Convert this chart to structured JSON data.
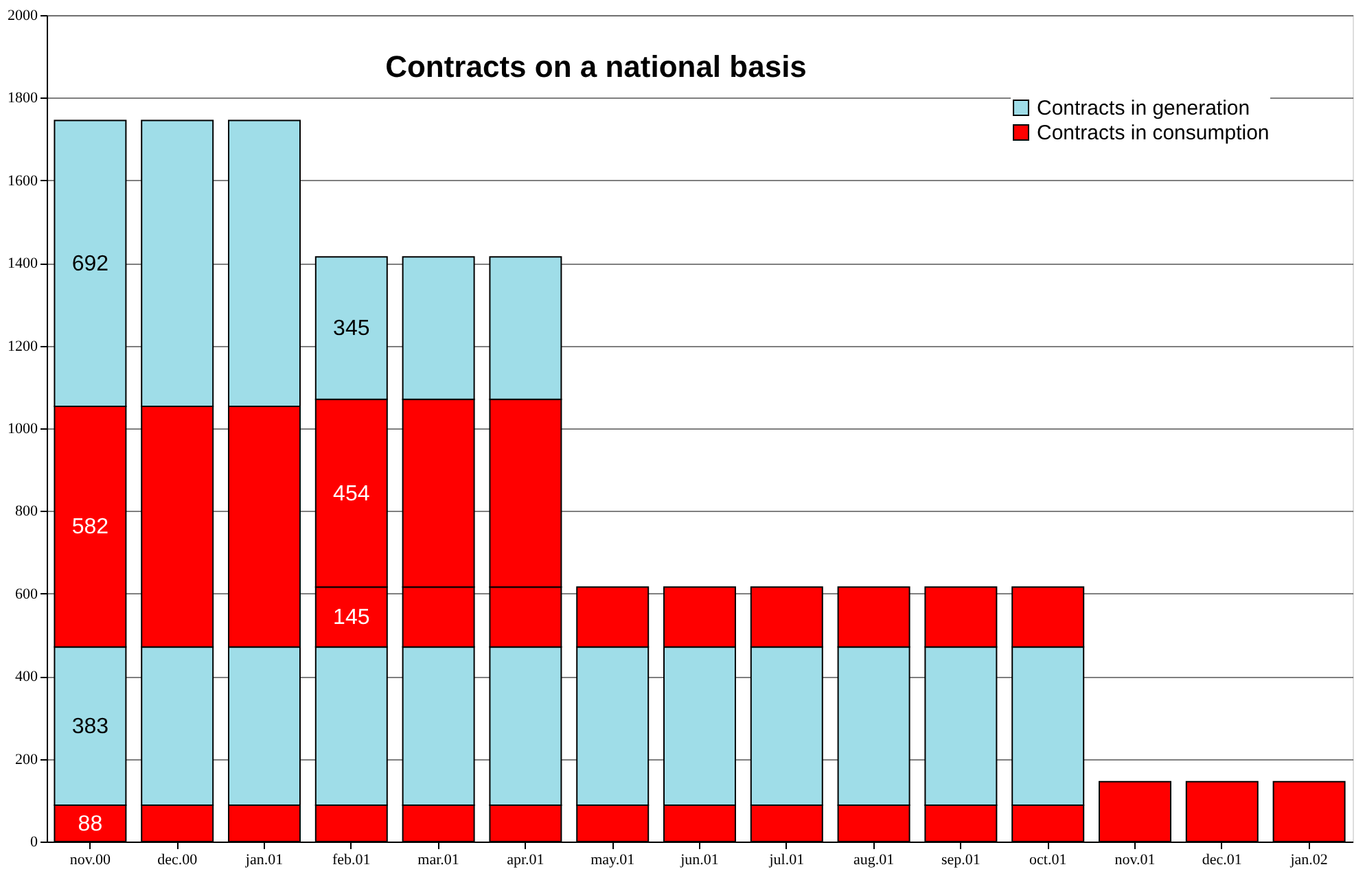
{
  "chart_data": {
    "type": "bar",
    "title": "Contracts on a national basis",
    "stacked": true,
    "categories": [
      "nov.00",
      "dec.00",
      "jan.01",
      "feb.01",
      "mar.01",
      "apr.01",
      "may.01",
      "jun.01",
      "jul.01",
      "aug.01",
      "sep.01",
      "oct.01",
      "nov.01",
      "dec.01",
      "jan.02"
    ],
    "series": [
      {
        "name": "Contracts in consumption",
        "color": "#ff0000",
        "values": [
          88,
          88,
          88,
          88,
          88,
          88,
          88,
          88,
          88,
          88,
          88,
          88,
          null,
          null,
          null
        ],
        "value_labels": [
          "88",
          null,
          null,
          null,
          null,
          null,
          null,
          null,
          null,
          null,
          null,
          null,
          null,
          null,
          null
        ]
      },
      {
        "name": "Contracts in generation",
        "color": "#9fdde8",
        "values": [
          383,
          383,
          383,
          383,
          383,
          383,
          383,
          383,
          383,
          383,
          383,
          383,
          null,
          null,
          null
        ],
        "value_labels": [
          "383",
          null,
          null,
          null,
          null,
          null,
          null,
          null,
          null,
          null,
          null,
          null,
          null,
          null,
          null
        ]
      },
      {
        "color": "#ff0000",
        "values": [
          null,
          null,
          null,
          145,
          145,
          145,
          145,
          145,
          145,
          145,
          145,
          145,
          145,
          145,
          145
        ],
        "value_labels": [
          null,
          null,
          null,
          "145",
          null,
          null,
          null,
          null,
          null,
          null,
          null,
          null,
          null,
          null,
          null
        ]
      },
      {
        "color": "#ff0000",
        "values": [
          582,
          582,
          582,
          454,
          454,
          454,
          null,
          null,
          null,
          null,
          null,
          null,
          null,
          null,
          null
        ],
        "value_labels": [
          "582",
          null,
          null,
          "454",
          null,
          null,
          null,
          null,
          null,
          null,
          null,
          null,
          null,
          null,
          null
        ]
      },
      {
        "color": "#9fdde8",
        "values": [
          692,
          692,
          692,
          345,
          345,
          345,
          null,
          null,
          null,
          null,
          null,
          null,
          null,
          null,
          null
        ],
        "value_labels": [
          "692",
          null,
          null,
          "345",
          null,
          null,
          null,
          null,
          null,
          null,
          null,
          null,
          null,
          null,
          null
        ]
      }
    ],
    "ylim": [
      0,
      2000
    ],
    "yticks": [
      0,
      200,
      400,
      600,
      800,
      1000,
      1200,
      1400,
      1600,
      1800,
      2000
    ],
    "grid": "y",
    "legend": "top right"
  }
}
